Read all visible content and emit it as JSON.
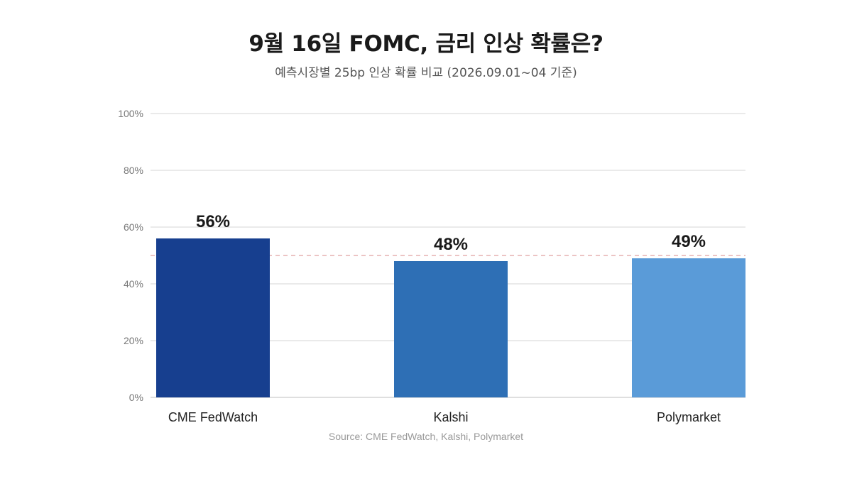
{
  "chart_data": {
    "type": "bar",
    "title": "9월 16일 FOMC, 금리 인상 확률은?",
    "subtitle": "예측시장별 25bp 인상 확률 비교 (2026.09.01~04 기준)",
    "categories": [
      "CME FedWatch",
      "Kalshi",
      "Polymarket"
    ],
    "values": [
      56,
      48,
      49
    ],
    "value_labels": [
      "56%",
      "48%",
      "49%"
    ],
    "colors": [
      "#173F8F",
      "#2E6FB5",
      "#5A9BD8"
    ],
    "ylim": [
      0,
      100
    ],
    "yticks": [
      0,
      20,
      40,
      60,
      80,
      100
    ],
    "ytick_labels": [
      "0%",
      "20%",
      "40%",
      "60%",
      "80%",
      "100%"
    ],
    "reference_line": 50,
    "grid": true,
    "xlabel": "",
    "ylabel": "",
    "source": "Source: CME FedWatch, Kalshi, Polymarket"
  }
}
